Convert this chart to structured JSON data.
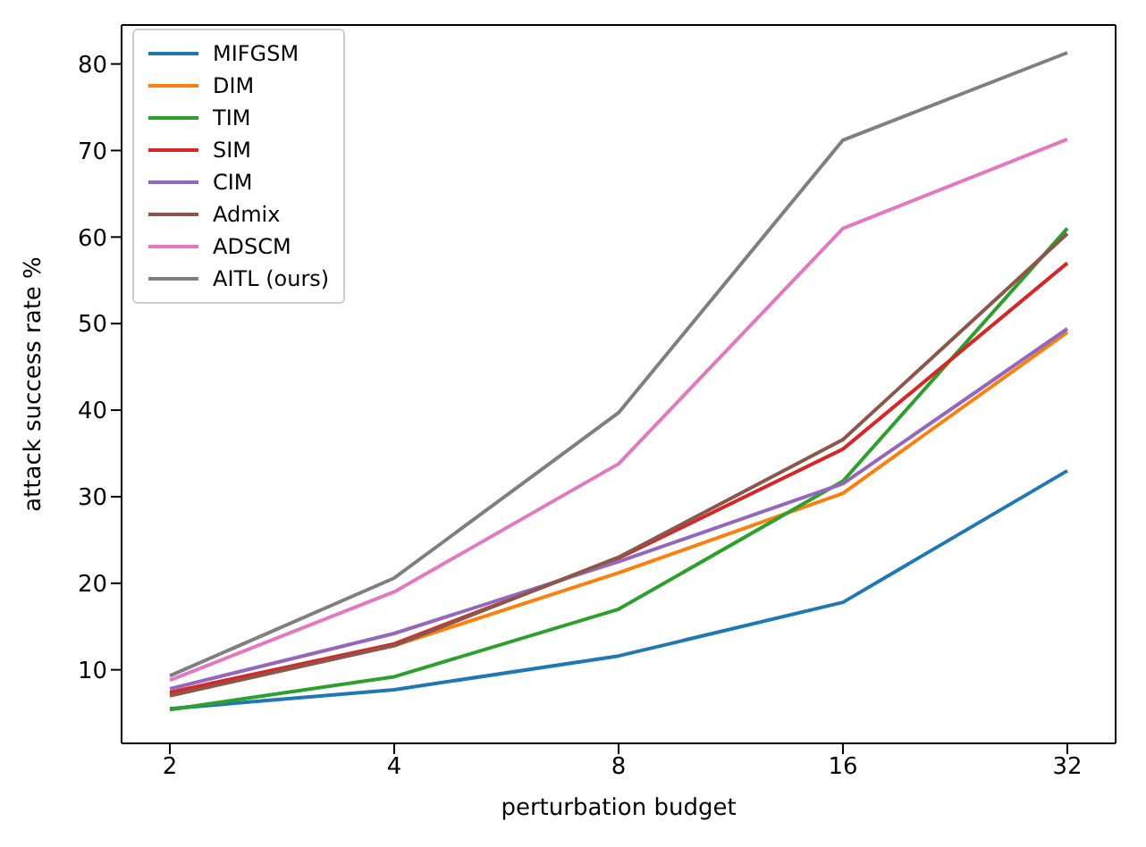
{
  "chart_data": {
    "type": "line",
    "xlabel": "perturbation budget",
    "ylabel": "attack success rate %",
    "categories": [
      "2",
      "4",
      "8",
      "16",
      "32"
    ],
    "ylim": [
      1.5,
      84.5
    ],
    "yticks": [
      10,
      20,
      30,
      40,
      50,
      60,
      70,
      80
    ],
    "grid": false,
    "legend": "top left",
    "marker": "none",
    "line_style": "solid",
    "series": [
      {
        "name": "MIFGSM",
        "color": "#1f77b4",
        "values": [
          5.5,
          7.7,
          11.6,
          17.8,
          33
        ]
      },
      {
        "name": "DIM",
        "color": "#ff7f0e",
        "values": [
          7.2,
          12.8,
          21.2,
          30.4,
          49
        ]
      },
      {
        "name": "TIM",
        "color": "#2ca02c",
        "values": [
          5.4,
          9.2,
          17,
          31.8,
          61
        ]
      },
      {
        "name": "SIM",
        "color": "#d62728",
        "values": [
          7.4,
          13,
          22.9,
          35.5,
          57
        ]
      },
      {
        "name": "CIM",
        "color": "#9467bd",
        "values": [
          7.8,
          14.2,
          22.5,
          31.5,
          49.4
        ]
      },
      {
        "name": "Admix",
        "color": "#8c564b",
        "values": [
          7,
          12.8,
          23,
          36.6,
          60.4
        ]
      },
      {
        "name": "ADSCM",
        "color": "#e377c2",
        "values": [
          8.8,
          19,
          33.8,
          61,
          71.3
        ]
      },
      {
        "name": "AITL (ours)",
        "color": "#7f7f7f",
        "values": [
          9.3,
          20.6,
          39.7,
          71.2,
          81.3
        ]
      }
    ]
  }
}
